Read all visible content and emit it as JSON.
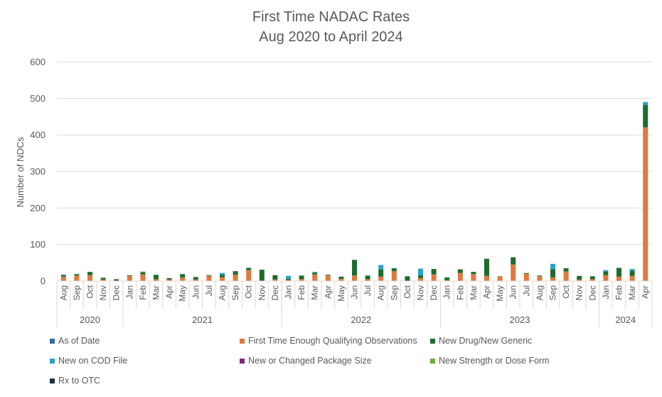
{
  "chart_data": {
    "type": "bar",
    "stacked": true,
    "title": "First Time NADAC Rates",
    "subtitle": "Aug 2020 to April 2024",
    "xlabel": "",
    "ylabel": "Number of NDCs",
    "ylim": [
      0,
      600
    ],
    "yticks": [
      0,
      100,
      200,
      300,
      400,
      500,
      600
    ],
    "grid": true,
    "legend_position": "bottom",
    "year_groups": [
      {
        "year": "2020",
        "months": 5
      },
      {
        "year": "2021",
        "months": 12
      },
      {
        "year": "2022",
        "months": 12
      },
      {
        "year": "2023",
        "months": 12
      },
      {
        "year": "2024",
        "months": 4
      }
    ],
    "categories": [
      "Aug",
      "Sep",
      "Oct",
      "Nov",
      "Dec",
      "Jan",
      "Feb",
      "Mar",
      "Apr",
      "May",
      "Jun",
      "Jul",
      "Aug",
      "Sep",
      "Oct",
      "Nov",
      "Dec",
      "Jan",
      "Feb",
      "Mar",
      "Apr",
      "May",
      "Jun",
      "Jul",
      "Aug",
      "Sep",
      "Oct",
      "Nov",
      "Dec",
      "Jan",
      "Feb",
      "Mar",
      "Apr",
      "May",
      "Jun",
      "Jul",
      "Aug",
      "Sep",
      "Oct",
      "Nov",
      "Dec",
      "Jan",
      "Feb",
      "Mar",
      "Apr"
    ],
    "series": [
      {
        "name": "As of Date",
        "color": "#2e6fa3",
        "values": [
          0,
          0,
          0,
          0,
          0,
          0,
          0,
          0,
          0,
          0,
          0,
          0,
          0,
          0,
          0,
          0,
          0,
          0,
          0,
          0,
          0,
          0,
          0,
          0,
          0,
          0,
          0,
          0,
          0,
          0,
          0,
          0,
          0,
          0,
          0,
          0,
          0,
          0,
          0,
          0,
          0,
          0,
          0,
          0,
          0
        ]
      },
      {
        "name": "First Time Enough Qualifying Observations",
        "color": "#e07a3c",
        "values": [
          12,
          15,
          16,
          4,
          1,
          14,
          18,
          5,
          4,
          10,
          4,
          14,
          10,
          17,
          30,
          1,
          4,
          3,
          5,
          18,
          15,
          6,
          15,
          5,
          12,
          27,
          1,
          8,
          18,
          2,
          22,
          19,
          14,
          12,
          45,
          20,
          13,
          10,
          26,
          4,
          5,
          16,
          12,
          14,
          421
        ]
      },
      {
        "name": "New Drug/New Generic",
        "color": "#1e6b2e",
        "values": [
          4,
          4,
          9,
          5,
          4,
          2,
          6,
          12,
          3,
          9,
          6,
          2,
          7,
          10,
          6,
          30,
          12,
          3,
          10,
          5,
          2,
          6,
          43,
          9,
          20,
          8,
          12,
          8,
          15,
          8,
          10,
          6,
          47,
          1,
          20,
          2,
          2,
          22,
          9,
          10,
          8,
          10,
          24,
          14,
          61
        ]
      },
      {
        "name": "New on COD File",
        "color": "#27a3c4",
        "values": [
          2,
          0,
          0,
          0,
          0,
          0,
          0,
          0,
          0,
          0,
          0,
          0,
          5,
          0,
          0,
          0,
          0,
          8,
          0,
          2,
          0,
          0,
          0,
          2,
          12,
          0,
          0,
          18,
          0,
          0,
          0,
          0,
          0,
          0,
          0,
          0,
          0,
          15,
          0,
          0,
          0,
          4,
          0,
          5,
          8
        ]
      },
      {
        "name": "New or Changed Package Size",
        "color": "#7a2a7a",
        "values": [
          0,
          0,
          0,
          0,
          0,
          0,
          0,
          0,
          0,
          0,
          0,
          0,
          0,
          0,
          0,
          0,
          0,
          0,
          0,
          0,
          0,
          0,
          0,
          0,
          0,
          0,
          0,
          0,
          0,
          0,
          0,
          0,
          0,
          0,
          0,
          0,
          0,
          0,
          0,
          0,
          0,
          0,
          0,
          0,
          0
        ]
      },
      {
        "name": "New Strength or Dose Form",
        "color": "#6aab3a",
        "values": [
          0,
          0,
          0,
          0,
          0,
          0,
          2,
          0,
          0,
          0,
          0,
          0,
          0,
          0,
          0,
          0,
          0,
          0,
          0,
          0,
          0,
          0,
          0,
          0,
          0,
          0,
          0,
          0,
          0,
          0,
          0,
          0,
          0,
          0,
          0,
          0,
          0,
          0,
          0,
          0,
          0,
          0,
          0,
          0,
          0
        ]
      },
      {
        "name": "Rx to OTC",
        "color": "#14304a",
        "values": [
          0,
          0,
          0,
          0,
          0,
          0,
          0,
          0,
          1,
          0,
          1,
          0,
          0,
          0,
          0,
          0,
          0,
          0,
          0,
          0,
          0,
          0,
          0,
          0,
          0,
          0,
          0,
          0,
          0,
          0,
          0,
          0,
          0,
          0,
          0,
          0,
          0,
          0,
          0,
          0,
          0,
          0,
          0,
          0,
          0
        ]
      }
    ]
  }
}
